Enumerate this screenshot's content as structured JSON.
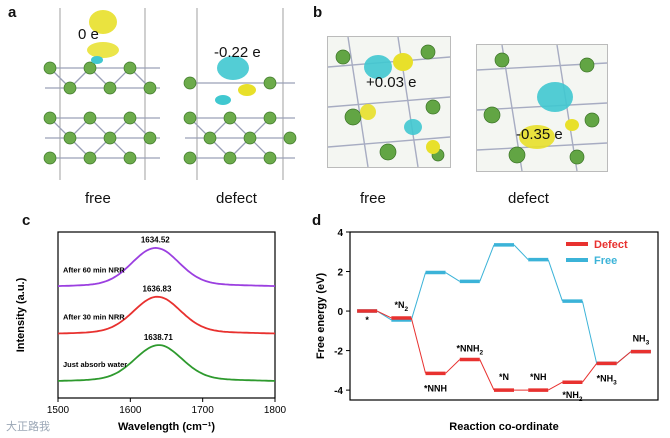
{
  "panels": {
    "a": {
      "letter": "a",
      "left": {
        "charge": "0 e",
        "caption": "free"
      },
      "right": {
        "charge": "-0.22 e",
        "caption": "defect"
      }
    },
    "b": {
      "letter": "b",
      "left": {
        "charge": "+0.03 e",
        "caption": "free"
      },
      "right": {
        "charge": "-0.35 e",
        "caption": "defect"
      }
    },
    "c": {
      "letter": "c"
    },
    "d": {
      "letter": "d"
    }
  },
  "chart_data": [
    {
      "type": "line",
      "title": "",
      "xlabel": "Wavelength (cm⁻¹)",
      "ylabel": "Intensity (a.u.)",
      "xlim": [
        1500,
        1800
      ],
      "xticks": [
        1500,
        1600,
        1700,
        1800
      ],
      "series": [
        {
          "name": "After 60 min NRR",
          "peak": 1634.52,
          "peak_label": "1634.52",
          "color": "#9b3fe0",
          "offset": 2.0,
          "amp": 0.75
        },
        {
          "name": "After 30 min NRR",
          "peak": 1636.83,
          "peak_label": "1636.83",
          "color": "#e8312f",
          "offset": 1.0,
          "amp": 0.72
        },
        {
          "name": "Just absorb water",
          "peak": 1638.71,
          "peak_label": "1638.71",
          "color": "#2e9a2e",
          "offset": 0.0,
          "amp": 0.7
        }
      ]
    },
    {
      "type": "line",
      "title": "",
      "xlabel": "Reaction co-ordinate",
      "ylabel": "Free energy (eV)",
      "ylim": [
        -4.5,
        4
      ],
      "yticks": [
        4,
        2,
        0,
        -2,
        -4
      ],
      "legend": [
        {
          "name": "Defect",
          "color": "#e8312f"
        },
        {
          "name": "Free",
          "color": "#3bb3d8"
        }
      ],
      "defect": [
        0,
        -0.35,
        -3.15,
        -2.45,
        -4.0,
        -4.0,
        -3.6,
        -2.65,
        -2.05
      ],
      "free": [
        0,
        -0.45,
        1.95,
        1.5,
        3.35,
        2.6,
        0.5,
        -2.65,
        -2.05
      ],
      "labels": [
        {
          "text": "*",
          "sub": "",
          "step": 0,
          "anchor": "defect",
          "dy": 12
        },
        {
          "text": "*N",
          "sub": "2",
          "step": 1,
          "anchor": "defect",
          "dy": -10
        },
        {
          "text": "*NNH",
          "sub": "",
          "step": 2,
          "anchor": "defect",
          "dy": 18
        },
        {
          "text": "*NNH",
          "sub": "2",
          "step": 3,
          "anchor": "defect",
          "dy": -8
        },
        {
          "text": "*N",
          "sub": "",
          "step": 4,
          "anchor": "defect",
          "dy": -10
        },
        {
          "text": "*NH",
          "sub": "",
          "step": 5,
          "anchor": "defect",
          "dy": -10
        },
        {
          "text": "*NH",
          "sub": "2",
          "step": 6,
          "anchor": "defect",
          "dy": 16
        },
        {
          "text": "*NH",
          "sub": "3",
          "step": 7,
          "anchor": "defect",
          "dy": 18
        },
        {
          "text": "NH",
          "sub": "3",
          "step": 8,
          "anchor": "defect",
          "dy": -10
        }
      ]
    }
  ],
  "watermark": "大正路我"
}
